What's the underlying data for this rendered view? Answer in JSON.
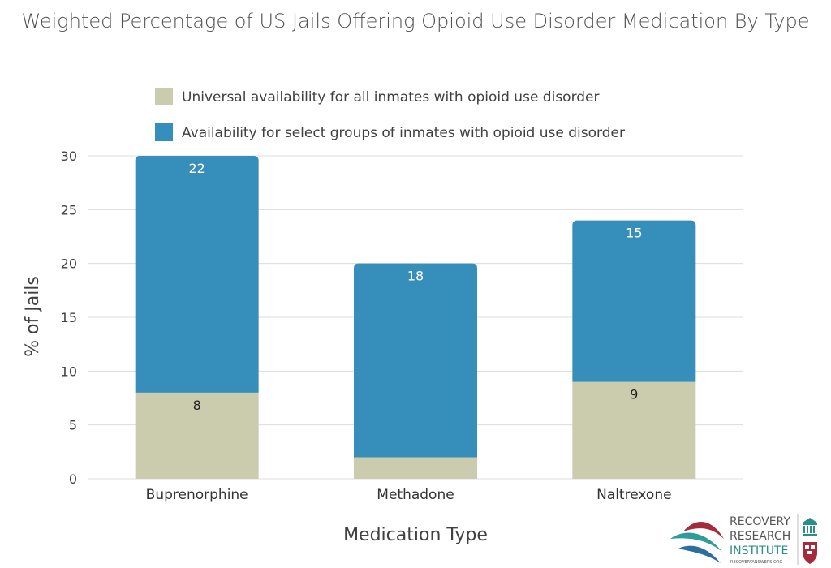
{
  "title": "Weighted Percentage of US Jails Offering Opioid Use Disorder Medication By Type",
  "colors": {
    "universal": "#cbcbad",
    "select": "#368fbb",
    "grid": "#dcdcdc"
  },
  "logo": {
    "line1": "RECOVERY",
    "line2": "RESEARCH",
    "line3": "INSTITUTE",
    "url": "RECOVERYANSWERS.ORG"
  },
  "chart_data": {
    "type": "bar",
    "stacked": true,
    "title": "Weighted Percentage of US Jails Offering Opioid Use Disorder Medication By Type",
    "xlabel": "Medication Type",
    "ylabel": "% of Jails",
    "ylim": [
      0,
      30
    ],
    "yticks": [
      0,
      5,
      10,
      15,
      20,
      25,
      30
    ],
    "grid": true,
    "legend_position": "top",
    "categories": [
      "Buprenorphine",
      "Methadone",
      "Naltrexone"
    ],
    "series": [
      {
        "name": "Universal availability for all inmates with opioid use disorder",
        "color": "#cbcbad",
        "values": [
          8,
          2,
          9
        ],
        "labels": [
          "8",
          "",
          "9"
        ]
      },
      {
        "name": "Availability for select groups of inmates with opioid use disorder",
        "color": "#368fbb",
        "values": [
          22,
          18,
          15
        ],
        "labels": [
          "22",
          "18",
          "15"
        ]
      }
    ]
  }
}
